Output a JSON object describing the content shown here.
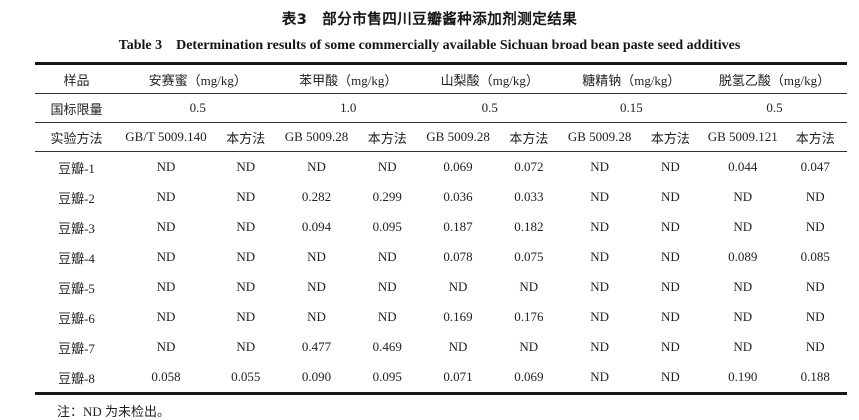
{
  "title": {
    "zh": "表3　部分市售四川豆瓣酱种添加剂测定结果",
    "en": "Table 3　Determination results of some commercially available Sichuan broad bean paste seed additives"
  },
  "table": {
    "col_headers": {
      "sample": "样品",
      "acesulfame": "安赛蜜（mg/kg）",
      "benzoic_acid": "苯甲酸（mg/kg）",
      "sorbic_acid": "山梨酸（mg/kg）",
      "sodium_saccharin": "糖精钠（mg/kg）",
      "dehydroacetic_acid": "脱氢乙酸（mg/kg）"
    },
    "limit_row": {
      "label": "国标限量",
      "values": [
        "0.5",
        "1.0",
        "0.5",
        "0.15",
        "0.5"
      ]
    },
    "method_row": {
      "label": "实验方法",
      "values": [
        "GB/T 5009.140",
        "本方法",
        "GB 5009.28",
        "本方法",
        "GB 5009.28",
        "本方法",
        "GB 5009.28",
        "本方法",
        "GB 5009.121",
        "本方法"
      ]
    },
    "rows": [
      {
        "label": "豆瓣-1",
        "values": [
          "ND",
          "ND",
          "ND",
          "ND",
          "0.069",
          "0.072",
          "ND",
          "ND",
          "0.044",
          "0.047"
        ]
      },
      {
        "label": "豆瓣-2",
        "values": [
          "ND",
          "ND",
          "0.282",
          "0.299",
          "0.036",
          "0.033",
          "ND",
          "ND",
          "ND",
          "ND"
        ]
      },
      {
        "label": "豆瓣-3",
        "values": [
          "ND",
          "ND",
          "0.094",
          "0.095",
          "0.187",
          "0.182",
          "ND",
          "ND",
          "ND",
          "ND"
        ]
      },
      {
        "label": "豆瓣-4",
        "values": [
          "ND",
          "ND",
          "ND",
          "ND",
          "0.078",
          "0.075",
          "ND",
          "ND",
          "0.089",
          "0.085"
        ]
      },
      {
        "label": "豆瓣-5",
        "values": [
          "ND",
          "ND",
          "ND",
          "ND",
          "ND",
          "ND",
          "ND",
          "ND",
          "ND",
          "ND"
        ]
      },
      {
        "label": "豆瓣-6",
        "values": [
          "ND",
          "ND",
          "ND",
          "ND",
          "0.169",
          "0.176",
          "ND",
          "ND",
          "ND",
          "ND"
        ]
      },
      {
        "label": "豆瓣-7",
        "values": [
          "ND",
          "ND",
          "0.477",
          "0.469",
          "ND",
          "ND",
          "ND",
          "ND",
          "ND",
          "ND"
        ]
      },
      {
        "label": "豆瓣-8",
        "values": [
          "0.058",
          "0.055",
          "0.090",
          "0.095",
          "0.071",
          "0.069",
          "ND",
          "ND",
          "0.190",
          "0.188"
        ]
      }
    ],
    "note": "注：ND 为未检出。"
  }
}
